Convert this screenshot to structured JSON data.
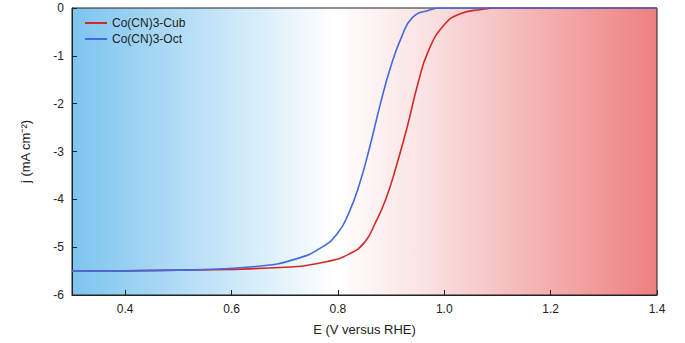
{
  "chart_data": {
    "type": "line",
    "x_label": "E (V versus RHE)",
    "y_label": "j (mA cm⁻²)",
    "xlim": [
      0.3,
      1.4
    ],
    "xticks": [
      0.4,
      0.6,
      0.8,
      {
        "value": 1,
        "label": "1.0"
      },
      1.2,
      1.4
    ],
    "ylim": [
      -6,
      0
    ],
    "yticks": [
      -6,
      -5,
      -4,
      -3,
      -2,
      -1,
      0
    ],
    "grid": false,
    "legend": "upper left",
    "series": [
      {
        "name": "Co(CN)3-Cub",
        "color": "#d62728",
        "x": [
          0.3,
          0.5,
          0.7,
          0.78,
          0.82,
          0.85,
          0.87,
          0.89,
          0.91,
          0.93,
          0.95,
          0.97,
          1.0,
          1.03,
          1.07,
          1.1,
          1.4
        ],
        "values": [
          -5.5,
          -5.48,
          -5.42,
          -5.3,
          -5.15,
          -4.9,
          -4.5,
          -4.0,
          -3.3,
          -2.5,
          -1.6,
          -0.9,
          -0.35,
          -0.12,
          -0.03,
          0,
          0
        ]
      },
      {
        "name": "Co(CN)3-Oct",
        "color": "#4169e1",
        "x": [
          0.3,
          0.5,
          0.65,
          0.72,
          0.77,
          0.8,
          0.82,
          0.84,
          0.86,
          0.88,
          0.9,
          0.92,
          0.94,
          0.97,
          1.0,
          1.4
        ],
        "values": [
          -5.5,
          -5.48,
          -5.4,
          -5.25,
          -5.0,
          -4.7,
          -4.3,
          -3.7,
          -2.9,
          -2.0,
          -1.2,
          -0.6,
          -0.2,
          -0.05,
          0,
          0
        ]
      }
    ]
  }
}
